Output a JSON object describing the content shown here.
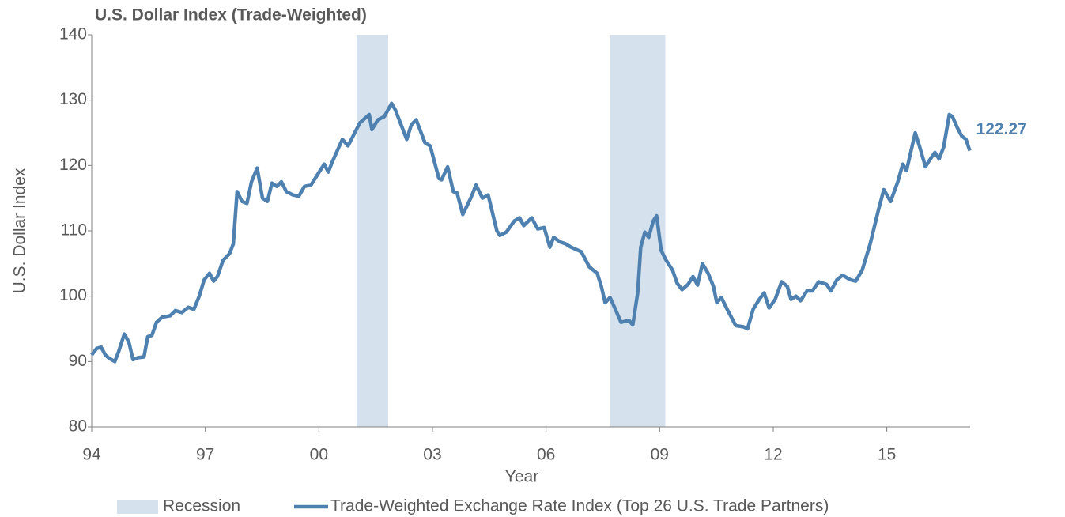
{
  "chart_data": {
    "type": "line",
    "title": "U.S. Dollar Index (Trade-Weighted)",
    "x_label": "Year",
    "y_label": "U.S. Dollar Index",
    "xlim": [
      1994,
      2017.2
    ],
    "ylim": [
      80,
      140
    ],
    "xticks": [
      {
        "value": 1994,
        "label": "94"
      },
      {
        "value": 1997,
        "label": "97"
      },
      {
        "value": 2000,
        "label": "00"
      },
      {
        "value": 2003,
        "label": "03"
      },
      {
        "value": 2006,
        "label": "06"
      },
      {
        "value": 2009,
        "label": "09"
      },
      {
        "value": 2012,
        "label": "12"
      },
      {
        "value": 2015,
        "label": "15"
      }
    ],
    "yticks": [
      80,
      90,
      100,
      110,
      120,
      130,
      140
    ],
    "grid": false,
    "legend": "bottom",
    "recessions": {
      "name": "Recession",
      "color": "#d5e1ec",
      "ranges": [
        [
          2001.0,
          2001.83
        ],
        [
          2007.7,
          2009.15
        ]
      ]
    },
    "x": [
      1994.0,
      1994.13,
      1994.25,
      1994.36,
      1994.46,
      1994.61,
      1994.71,
      1994.86,
      1994.98,
      1995.09,
      1995.23,
      1995.38,
      1995.48,
      1995.59,
      1995.71,
      1995.86,
      1996.07,
      1996.21,
      1996.38,
      1996.55,
      1996.7,
      1996.84,
      1996.97,
      1997.11,
      1997.22,
      1997.32,
      1997.47,
      1997.64,
      1997.74,
      1997.84,
      1997.97,
      1998.1,
      1998.22,
      1998.37,
      1998.51,
      1998.64,
      1998.76,
      1998.89,
      1999.01,
      1999.14,
      1999.31,
      1999.47,
      1999.62,
      1999.79,
      2000.14,
      2000.25,
      2000.35,
      2000.62,
      2000.77,
      2001.08,
      2001.33,
      2001.4,
      2001.56,
      2001.73,
      2001.92,
      2002.02,
      2002.32,
      2002.44,
      2002.57,
      2002.8,
      2002.94,
      2003.17,
      2003.24,
      2003.4,
      2003.55,
      2003.65,
      2003.8,
      2004.01,
      2004.15,
      2004.32,
      2004.47,
      2004.7,
      2004.78,
      2004.95,
      2005.16,
      2005.3,
      2005.41,
      2005.62,
      2005.78,
      2005.95,
      2006.1,
      2006.2,
      2006.37,
      2006.52,
      2006.66,
      2006.93,
      2007.14,
      2007.35,
      2007.46,
      2007.56,
      2007.69,
      2007.83,
      2007.98,
      2008.19,
      2008.29,
      2008.42,
      2008.5,
      2008.61,
      2008.71,
      2008.83,
      2008.92,
      2009.04,
      2009.17,
      2009.34,
      2009.46,
      2009.59,
      2009.75,
      2009.88,
      2010.0,
      2010.13,
      2010.28,
      2010.42,
      2010.51,
      2010.63,
      2010.8,
      2011.01,
      2011.22,
      2011.32,
      2011.47,
      2011.63,
      2011.76,
      2011.89,
      2012.05,
      2012.22,
      2012.37,
      2012.47,
      2012.6,
      2012.72,
      2012.89,
      2013.03,
      2013.2,
      2013.41,
      2013.52,
      2013.68,
      2013.83,
      2014.04,
      2014.18,
      2014.35,
      2014.56,
      2014.77,
      2014.92,
      2015.1,
      2015.29,
      2015.42,
      2015.52,
      2015.65,
      2015.75,
      2015.86,
      2016.02,
      2016.15,
      2016.27,
      2016.38,
      2016.5,
      2016.65,
      2016.73,
      2016.86,
      2016.98,
      2017.09,
      2017.19
    ],
    "series": [
      {
        "name": "Trade-Weighted Exchange Rate Index (Top 26 U.S. Trade Partners)",
        "color": "#4f81b0",
        "values": [
          91,
          92,
          92.2,
          91,
          90.5,
          90,
          91.5,
          94.2,
          93,
          90.3,
          90.6,
          90.7,
          93.8,
          94,
          96,
          96.8,
          97,
          97.8,
          97.5,
          98.3,
          98,
          100,
          102.5,
          103.5,
          102.3,
          103,
          105.5,
          106.5,
          108,
          116,
          114.5,
          114.2,
          117.5,
          119.6,
          115,
          114.5,
          117.3,
          116.8,
          117.5,
          116,
          115.5,
          115.3,
          116.8,
          117,
          120.2,
          119,
          120.5,
          124,
          123,
          126.5,
          127.8,
          125.5,
          127,
          127.5,
          129.5,
          128.5,
          124,
          126.2,
          127,
          123.5,
          123,
          118,
          117.8,
          119.8,
          116,
          115.8,
          112.5,
          115,
          117,
          115,
          115.5,
          110,
          109.3,
          109.8,
          111.5,
          112,
          110.8,
          112,
          110.3,
          110.5,
          107.5,
          109,
          108.3,
          108,
          107.5,
          106.8,
          104.5,
          103.5,
          101.5,
          99,
          99.8,
          98,
          96,
          96.3,
          95.6,
          100.5,
          107.5,
          109.8,
          109,
          111.5,
          112.3,
          107,
          105.5,
          104,
          102,
          101,
          101.8,
          103,
          101.7,
          105,
          103.5,
          101.5,
          99,
          99.8,
          97.8,
          95.5,
          95.3,
          95,
          98,
          99.5,
          100.5,
          98.2,
          99.5,
          102.2,
          101.5,
          99.5,
          100,
          99.3,
          100.8,
          100.8,
          102.2,
          101.8,
          100.8,
          102.5,
          103.2,
          102.5,
          102.3,
          104,
          108,
          113,
          116.3,
          114.5,
          117.5,
          120.2,
          119.2,
          122.5,
          125,
          123,
          119.8,
          121,
          122,
          121,
          122.8,
          127.8,
          127.5,
          125.8,
          124.5,
          124,
          122.27
        ]
      }
    ]
  }
}
